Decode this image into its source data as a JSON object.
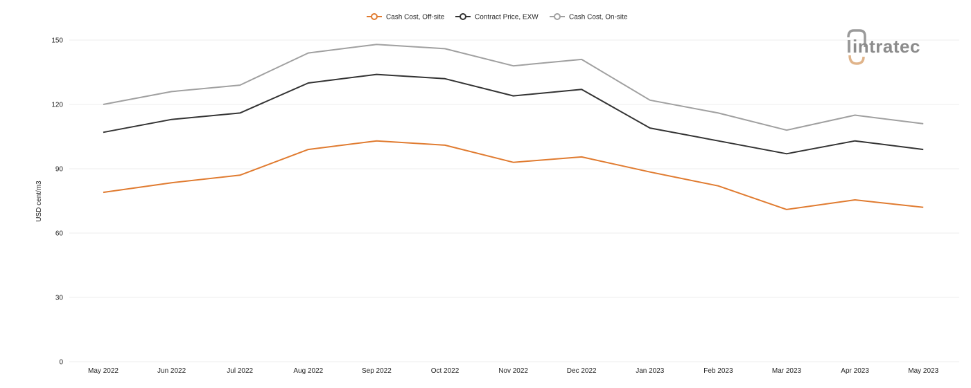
{
  "chart_data": {
    "type": "line",
    "ylabel": "USD cent/m3",
    "ylim": [
      0,
      150
    ],
    "yticks": [
      0,
      30,
      60,
      90,
      120,
      150
    ],
    "grid": true,
    "legend_position": "top-center",
    "categories": [
      "May 2022",
      "Jun 2022",
      "Jul 2022",
      "Aug 2022",
      "Sep 2022",
      "Oct 2022",
      "Nov 2022",
      "Dec 2022",
      "Jan 2023",
      "Feb 2023",
      "Mar 2023",
      "Apr 2023",
      "May 2023"
    ],
    "series": [
      {
        "name": "Cash Cost, Off-site",
        "color": "#e07b30",
        "values": [
          79,
          83.5,
          87,
          99,
          103,
          101,
          93,
          95.5,
          88.5,
          82,
          71,
          75.5,
          72
        ]
      },
      {
        "name": "Contract Price, EXW",
        "color": "#333333",
        "values": [
          107,
          113,
          116,
          130,
          134,
          132,
          124,
          127,
          109,
          103,
          97,
          103,
          99
        ]
      },
      {
        "name": "Cash Cost, On-site",
        "color": "#a0a0a0",
        "values": [
          120,
          126,
          129,
          144,
          148,
          146,
          138,
          141,
          122,
          116,
          108,
          115,
          111
        ]
      }
    ]
  },
  "logo": {
    "text": "intratec",
    "icon": "intratec-logo-icon",
    "accent": "#e0b48a"
  }
}
